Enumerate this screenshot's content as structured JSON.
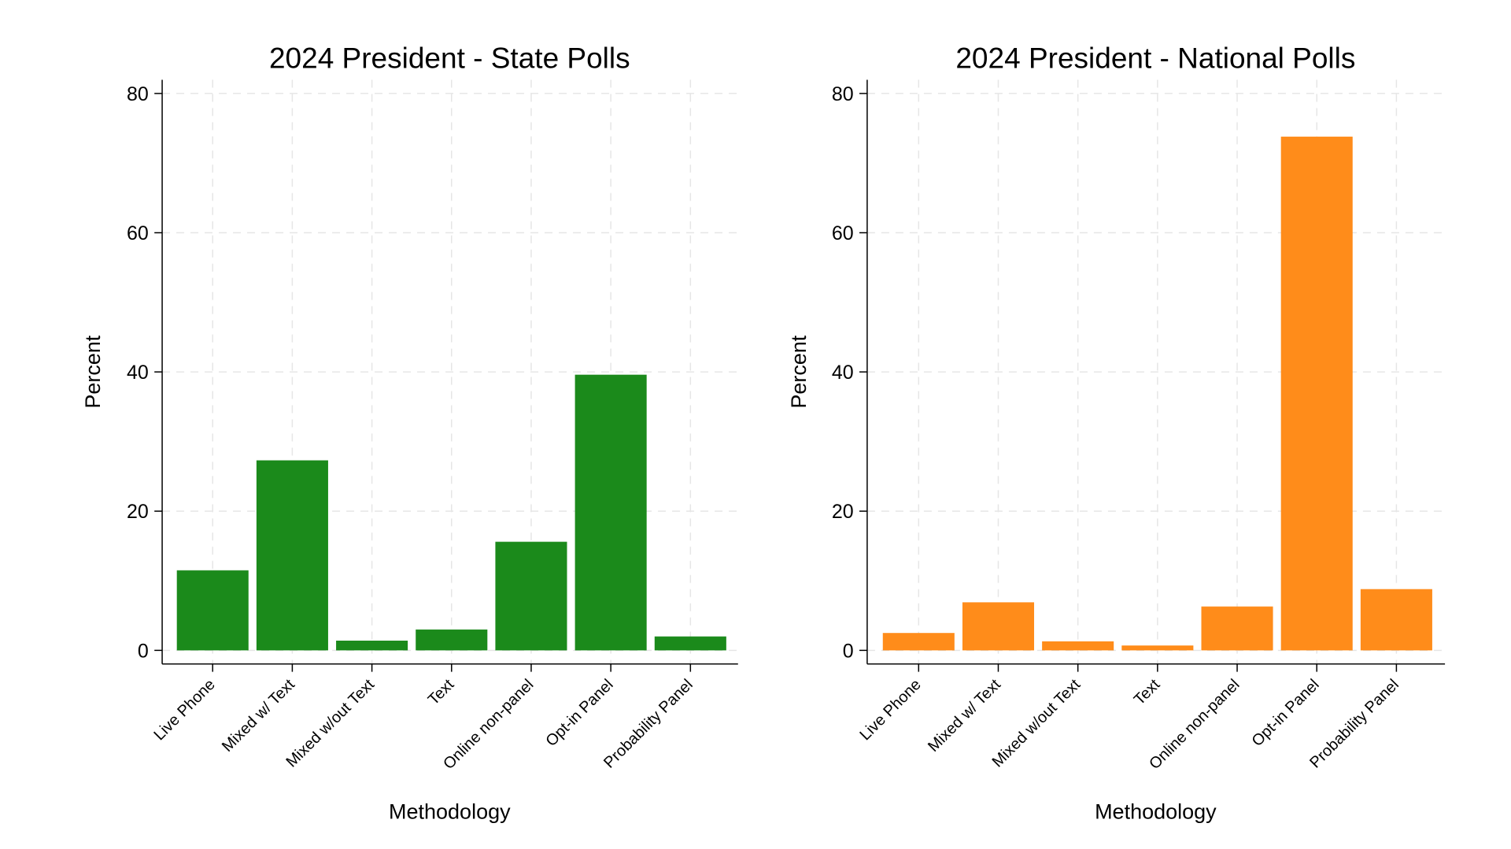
{
  "chart_data": [
    {
      "type": "bar",
      "title": "2024 President - State Polls",
      "xlabel": "Methodology",
      "ylabel": "Percent",
      "categories": [
        "Live Phone",
        "Mixed w/ Text",
        "Mixed w/out Text",
        "Text",
        "Online non-panel",
        "Opt-in Panel",
        "Probability Panel"
      ],
      "values": [
        11.5,
        27.3,
        1.4,
        3.0,
        15.6,
        39.6,
        2.0
      ],
      "ylim": [
        0,
        80
      ],
      "yticks": [
        0,
        20,
        40,
        60,
        80
      ],
      "color": "#1b8a1b",
      "grid": true
    },
    {
      "type": "bar",
      "title": "2024 President - National Polls",
      "xlabel": "Methodology",
      "ylabel": "Percent",
      "categories": [
        "Live Phone",
        "Mixed w/ Text",
        "Mixed w/out Text",
        "Text",
        "Online non-panel",
        "Opt-in Panel",
        "Probability Panel"
      ],
      "values": [
        2.5,
        6.9,
        1.3,
        0.7,
        6.3,
        73.8,
        8.8
      ],
      "ylim": [
        0,
        80
      ],
      "yticks": [
        0,
        20,
        40,
        60,
        80
      ],
      "color": "#ff8c1a",
      "grid": true
    }
  ]
}
